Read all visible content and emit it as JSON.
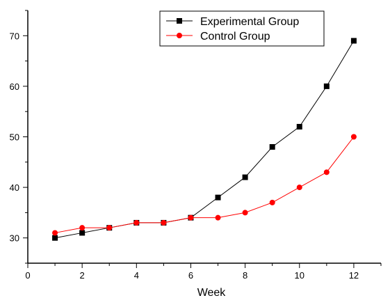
{
  "chart_data": {
    "type": "line",
    "title": "",
    "xlabel": "Week",
    "ylabel": "",
    "xlim": [
      0,
      13
    ],
    "ylim": [
      25,
      75
    ],
    "x_ticks": [
      0,
      2,
      4,
      6,
      8,
      10,
      12
    ],
    "y_ticks": [
      30,
      40,
      50,
      60,
      70
    ],
    "grid": false,
    "legend_position": "top-right",
    "x": [
      1,
      2,
      3,
      4,
      5,
      6,
      7,
      8,
      9,
      10,
      11,
      12
    ],
    "series": [
      {
        "name": "Experimental Group",
        "marker": "square",
        "color": "#000000",
        "values": [
          30,
          31,
          32,
          33,
          33,
          34,
          38,
          42,
          48,
          52,
          60,
          69
        ]
      },
      {
        "name": "Control Group",
        "marker": "circle",
        "color": "#ff0000",
        "values": [
          31,
          32,
          32,
          33,
          33,
          34,
          34,
          35,
          37,
          40,
          43,
          50
        ]
      }
    ]
  }
}
